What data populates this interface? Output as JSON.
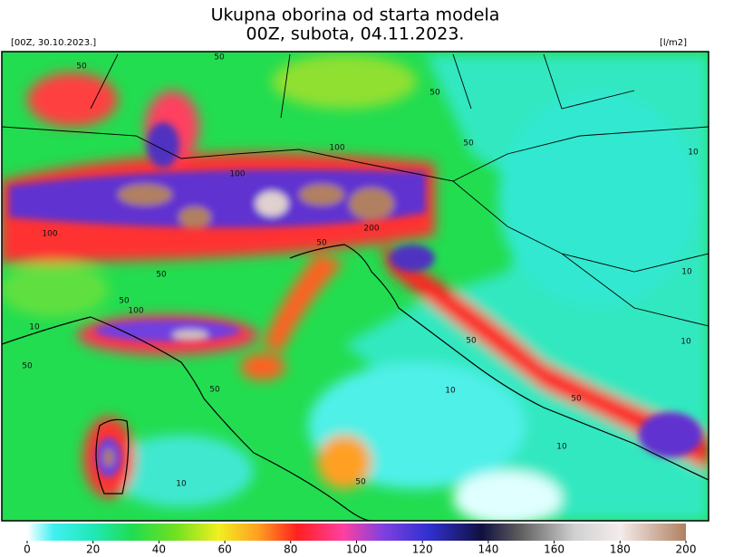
{
  "header": {
    "title_lines": [
      "Ukupna oborina od starta modela",
      "00Z, subota, 04.11.2023."
    ],
    "left_label": "[00Z, 30.10.2023.]",
    "right_label": "[l/m2]"
  },
  "colorbar": {
    "lim": [
      0,
      200
    ],
    "ticks": [
      0,
      20,
      40,
      60,
      80,
      100,
      120,
      140,
      160,
      180,
      200
    ],
    "stops": [
      {
        "value": 0,
        "color": "#ffffff"
      },
      {
        "value": 8,
        "color": "#40f0f0"
      },
      {
        "value": 20,
        "color": "#20e8b8"
      },
      {
        "value": 32,
        "color": "#20dd50"
      },
      {
        "value": 45,
        "color": "#70e020"
      },
      {
        "value": 58,
        "color": "#f0f020"
      },
      {
        "value": 70,
        "color": "#ffa020"
      },
      {
        "value": 82,
        "color": "#ff2020"
      },
      {
        "value": 96,
        "color": "#ff40a0"
      },
      {
        "value": 108,
        "color": "#8040e0"
      },
      {
        "value": 122,
        "color": "#3030d0"
      },
      {
        "value": 138,
        "color": "#101040"
      },
      {
        "value": 150,
        "color": "#606060"
      },
      {
        "value": 166,
        "color": "#d0d0d0"
      },
      {
        "value": 180,
        "color": "#f4ecec"
      },
      {
        "value": 200,
        "color": "#b08060"
      }
    ]
  },
  "map": {
    "contour_labels": [
      50,
      50,
      50,
      50,
      100,
      100,
      100,
      10,
      10,
      50,
      50,
      200,
      50,
      100,
      10,
      50,
      50,
      50,
      50,
      10,
      10,
      10,
      50,
      10
    ]
  }
}
